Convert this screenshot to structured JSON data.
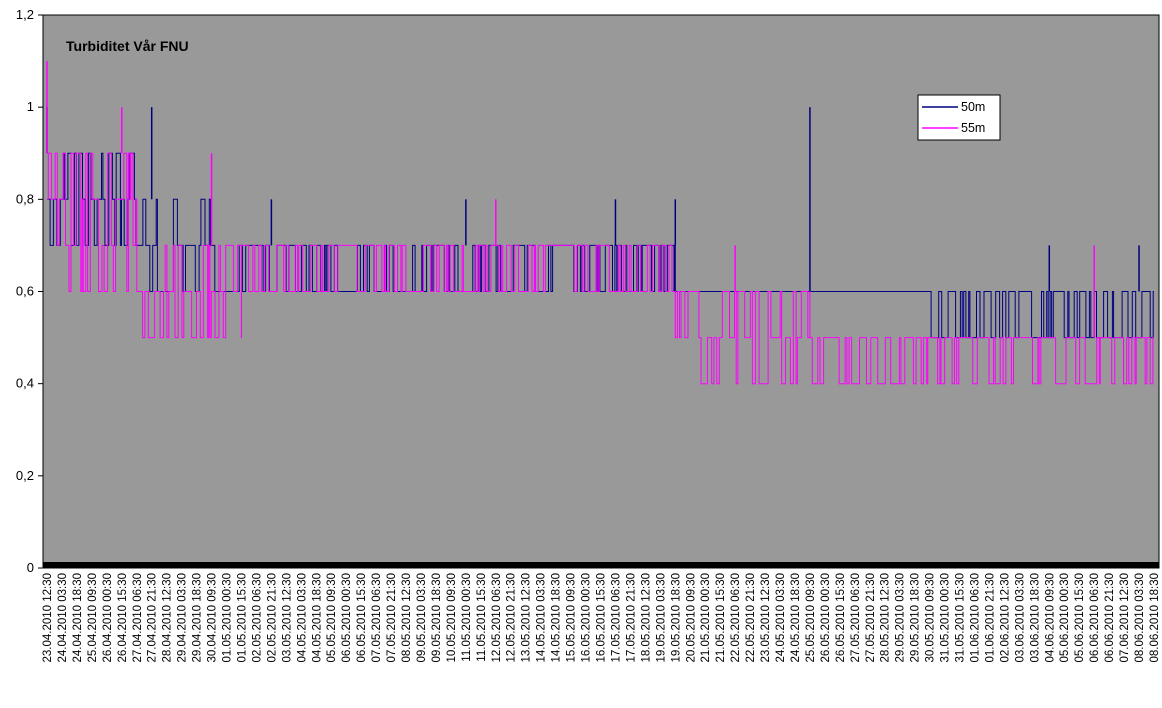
{
  "chart_data": {
    "type": "line",
    "title": "Turbiditet Vår FNU",
    "xlabel": "",
    "ylabel": "",
    "ylim": [
      0,
      1.2
    ],
    "y_ticks": [
      "0",
      "0,2",
      "0,4",
      "0,6",
      "0,8",
      "1",
      "1,2"
    ],
    "grid": false,
    "legend_position": "top-right",
    "plot_background": "#999999",
    "x_tick_labels": [
      "23.04.2010 12:30",
      "24.04.2010 03:30",
      "24.04.2010 18:30",
      "25.04.2010 09:30",
      "26.04.2010 00:30",
      "26.04.2010 15:30",
      "27.04.2010 06:30",
      "27.04.2010 21:30",
      "28.04.2010 12:30",
      "29.04.2010 03:30",
      "29.04.2010 18:30",
      "30.04.2010 09:30",
      "01.05.2010 00:30",
      "01.05.2010 15:30",
      "02.05.2010 06:30",
      "02.05.2010 21:30",
      "03.05.2010 12:30",
      "04.05.2010 03:30",
      "04.05.2010 18:30",
      "05.05.2010 09:30",
      "06.05.2010 00:30",
      "06.05.2010 15:30",
      "07.05.2010 06:30",
      "07.05.2010 21:30",
      "08.05.2010 12:30",
      "09.05.2010 03:30",
      "09.05.2010 18:30",
      "10.05.2010 09:30",
      "11.05.2010 00:30",
      "11.05.2010 15:30",
      "12.05.2010 06:30",
      "12.05.2010 21:30",
      "13.05.2010 12:30",
      "14.05.2010 03:30",
      "14.05.2010 18:30",
      "15.05.2010 09:30",
      "16.05.2010 00:30",
      "16.05.2010 15:30",
      "17.05.2010 06:30",
      "17.05.2010 21:30",
      "18.05.2010 12:30",
      "19.05.2010 03:30",
      "19.05.2010 18:30",
      "20.05.2010 09:30",
      "21.05.2010 00:30",
      "21.05.2010 15:30",
      "22.05.2010 06:30",
      "22.05.2010 21:30",
      "23.05.2010 12:30",
      "24.05.2010 03:30",
      "24.05.2010 18:30",
      "25.05.2010 09:30",
      "26.05.2010 00:30",
      "26.05.2010 15:30",
      "27.05.2010 06:30",
      "27.05.2010 21:30",
      "28.05.2010 12:30",
      "29.05.2010 03:30",
      "29.05.2010 18:30",
      "30.05.2010 09:30",
      "31.05.2010 00:30",
      "31.05.2010 15:30",
      "01.06.2010 06:30",
      "01.06.2010 21:30",
      "02.06.2010 12:30",
      "03.06.2010 03:30",
      "03.06.2010 18:30",
      "04.06.2010 09:30",
      "05.06.2010 00:30",
      "05.06.2010 15:30",
      "06.06.2010 06:30",
      "06.06.2010 21:30",
      "07.06.2010 12:30",
      "08.06.2010 03:30",
      "08.06.2010 18:30"
    ],
    "series": [
      {
        "name": "50m",
        "color": "#000080",
        "segments": [
          {
            "from": "23.04.2010 12:30",
            "to": "27.04.2010 06:30",
            "range": [
              0.7,
              0.9
            ]
          },
          {
            "from": "27.04.2010 06:30",
            "to": "30.04.2010 09:30",
            "range": [
              0.6,
              0.8
            ]
          },
          {
            "from": "30.04.2010 09:30",
            "to": "19.05.2010 18:30",
            "range": [
              0.6,
              0.7
            ]
          },
          {
            "from": "19.05.2010 18:30",
            "to": "30.05.2010 09:30",
            "range": [
              0.6,
              0.6
            ]
          },
          {
            "from": "30.05.2010 09:30",
            "to": "08.06.2010 18:30",
            "range": [
              0.5,
              0.6
            ]
          }
        ],
        "spikes": [
          {
            "x": "23.04.2010 12:30",
            "y": 1.0
          },
          {
            "x": "27.04.2010 21:30",
            "y": 1.0
          },
          {
            "x": "02.05.2010 21:30",
            "y": 0.8
          },
          {
            "x": "11.05.2010 00:30",
            "y": 0.8
          },
          {
            "x": "17.05.2010 06:30",
            "y": 0.8
          },
          {
            "x": "19.05.2010 18:30",
            "y": 0.8
          },
          {
            "x": "25.05.2010 09:30",
            "y": 1.0
          },
          {
            "x": "04.06.2010 09:30",
            "y": 0.7
          },
          {
            "x": "08.06.2010 03:30",
            "y": 0.7
          }
        ]
      },
      {
        "name": "55m",
        "color": "#ff00ff",
        "segments": [
          {
            "from": "23.04.2010 12:30",
            "to": "27.04.2010 06:30",
            "range": [
              0.6,
              0.9
            ]
          },
          {
            "from": "27.04.2010 06:30",
            "to": "01.05.2010 15:30",
            "range": [
              0.5,
              0.7
            ]
          },
          {
            "from": "01.05.2010 15:30",
            "to": "19.05.2010 18:30",
            "range": [
              0.6,
              0.7
            ]
          },
          {
            "from": "19.05.2010 18:30",
            "to": "25.05.2010 09:30",
            "range": [
              0.4,
              0.6
            ]
          },
          {
            "from": "25.05.2010 09:30",
            "to": "08.06.2010 18:30",
            "range": [
              0.4,
              0.5
            ]
          }
        ],
        "spikes": [
          {
            "x": "23.04.2010 12:30",
            "y": 1.1
          },
          {
            "x": "26.04.2010 15:30",
            "y": 1.0
          },
          {
            "x": "30.04.2010 09:30",
            "y": 0.9
          },
          {
            "x": "12.05.2010 06:30",
            "y": 0.8
          },
          {
            "x": "22.05.2010 06:30",
            "y": 0.7
          },
          {
            "x": "06.06.2010 06:30",
            "y": 0.7
          }
        ]
      }
    ]
  }
}
